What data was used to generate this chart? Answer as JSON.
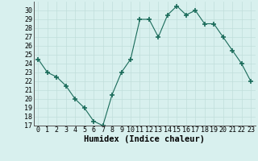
{
  "x": [
    0,
    1,
    2,
    3,
    4,
    5,
    6,
    7,
    8,
    9,
    10,
    11,
    12,
    13,
    14,
    15,
    16,
    17,
    18,
    19,
    20,
    21,
    22,
    23
  ],
  "y": [
    24.5,
    23,
    22.5,
    21.5,
    20,
    19,
    17.5,
    17,
    20.5,
    23,
    24.5,
    29,
    29,
    27,
    29.5,
    30.5,
    29.5,
    30,
    28.5,
    28.5,
    27,
    25.5,
    24,
    22
  ],
  "xlabel": "Humidex (Indice chaleur)",
  "xlim": [
    -0.5,
    23.5
  ],
  "ylim": [
    17,
    31
  ],
  "yticks": [
    17,
    18,
    19,
    20,
    21,
    22,
    23,
    24,
    25,
    26,
    27,
    28,
    29,
    30
  ],
  "xticks": [
    0,
    1,
    2,
    3,
    4,
    5,
    6,
    7,
    8,
    9,
    10,
    11,
    12,
    13,
    14,
    15,
    16,
    17,
    18,
    19,
    20,
    21,
    22,
    23
  ],
  "line_color": "#1a6b5a",
  "marker": "+",
  "marker_size": 4,
  "bg_color": "#d8f0ee",
  "grid_color": "#c0deda",
  "tick_label_fontsize": 6,
  "xlabel_fontsize": 7.5
}
